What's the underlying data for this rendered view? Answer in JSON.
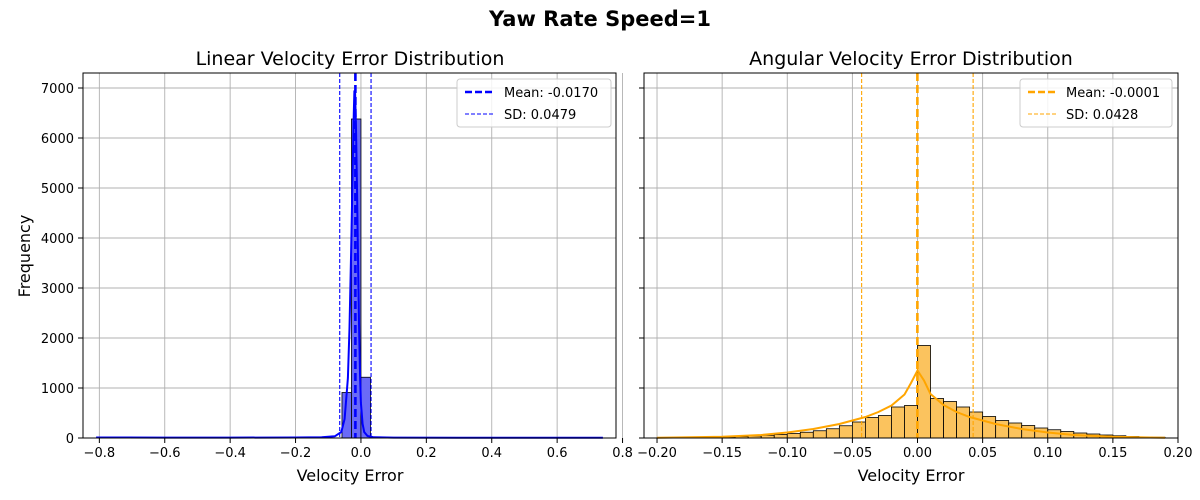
{
  "figure": {
    "suptitle": "Yaw Rate Speed=1"
  },
  "chart_data": [
    {
      "type": "histogram",
      "title": "Linear Velocity Error Distribution",
      "xlabel": "Velocity Error",
      "ylabel": "Frequency",
      "xlim": [
        -0.85,
        0.78
      ],
      "ylim": [
        0,
        7300
      ],
      "xticks": [
        -0.8,
        -0.6,
        -0.4,
        -0.2,
        0.0,
        0.2,
        0.4,
        0.6,
        0.8
      ],
      "xtick_labels": [
        "−0.8",
        "−0.6",
        "−0.4",
        "−0.2",
        "0.0",
        "0.2",
        "0.4",
        "0.6",
        "0.8"
      ],
      "yticks": [
        0,
        1000,
        2000,
        3000,
        4000,
        5000,
        6000,
        7000
      ],
      "ytick_labels": [
        "0",
        "1000",
        "2000",
        "3000",
        "4000",
        "5000",
        "6000",
        "7000"
      ],
      "grid": true,
      "color": "#0000ff",
      "bar_fill": "#6a6af7",
      "bins": [
        {
          "x0": -0.058,
          "x1": -0.029,
          "count": 910
        },
        {
          "x0": -0.029,
          "x1": 0.0,
          "count": 6380
        },
        {
          "x0": 0.0,
          "x1": 0.029,
          "count": 1215
        }
      ],
      "kde": {
        "x": [
          -0.81,
          -0.6,
          -0.4,
          -0.2,
          -0.12,
          -0.08,
          -0.06,
          -0.05,
          -0.04,
          -0.035,
          -0.03,
          -0.025,
          -0.022,
          -0.02,
          -0.018,
          -0.015,
          -0.012,
          -0.009,
          -0.006,
          -0.003,
          0.0,
          0.005,
          0.01,
          0.02,
          0.04,
          0.1,
          0.3,
          0.5,
          0.74
        ],
        "y": [
          10,
          8,
          8,
          10,
          15,
          35,
          120,
          380,
          1200,
          2200,
          3700,
          5500,
          6500,
          6950,
          6900,
          6200,
          5000,
          3600,
          2300,
          1300,
          700,
          280,
          120,
          40,
          15,
          8,
          5,
          5,
          5
        ]
      },
      "mean": -0.017,
      "sd": 0.0479,
      "legend": {
        "placement": "upper right",
        "entries": [
          {
            "label": "Mean: -0.0170",
            "style": "dashed-thick"
          },
          {
            "label": "SD: 0.0479",
            "style": "dashed-thin"
          }
        ]
      }
    },
    {
      "type": "histogram",
      "title": "Angular Velocity Error Distribution",
      "xlabel": "Velocity Error",
      "ylabel": "",
      "xlim": [
        -0.21,
        0.2
      ],
      "ylim": [
        0,
        7300
      ],
      "xticks": [
        -0.2,
        -0.15,
        -0.1,
        -0.05,
        0.0,
        0.05,
        0.1,
        0.15,
        0.2
      ],
      "xtick_labels": [
        "−0.20",
        "−0.15",
        "−0.10",
        "−0.05",
        "0.00",
        "0.05",
        "0.10",
        "0.15",
        "0.20"
      ],
      "yticks": [
        0,
        1000,
        2000,
        3000,
        4000,
        5000,
        6000,
        7000
      ],
      "ytick_labels": [],
      "grid": true,
      "color": "#ffa500",
      "bar_fill": "#fbc35e",
      "bin_start": -0.2,
      "bin_width": 0.01,
      "counts": [
        5,
        5,
        8,
        10,
        15,
        20,
        28,
        40,
        55,
        70,
        90,
        115,
        145,
        185,
        245,
        320,
        410,
        450,
        620,
        650,
        1850,
        790,
        730,
        620,
        520,
        430,
        350,
        300,
        250,
        200,
        165,
        130,
        100,
        80,
        60,
        45,
        30,
        22,
        15
      ],
      "kde": {
        "x": [
          -0.2,
          -0.15,
          -0.12,
          -0.1,
          -0.08,
          -0.06,
          -0.04,
          -0.03,
          -0.02,
          -0.01,
          -0.005,
          0.0,
          0.005,
          0.01,
          0.02,
          0.03,
          0.04,
          0.06,
          0.08,
          0.1,
          0.12,
          0.15,
          0.19
        ],
        "y": [
          5,
          25,
          60,
          110,
          180,
          280,
          420,
          520,
          650,
          870,
          1100,
          1350,
          1150,
          880,
          660,
          520,
          420,
          280,
          180,
          110,
          60,
          25,
          5
        ]
      },
      "mean": -0.0001,
      "sd": 0.0428,
      "legend": {
        "placement": "upper right",
        "entries": [
          {
            "label": "Mean: -0.0001",
            "style": "dashed-thick"
          },
          {
            "label": "SD: 0.0428",
            "style": "dashed-thin"
          }
        ]
      }
    }
  ]
}
